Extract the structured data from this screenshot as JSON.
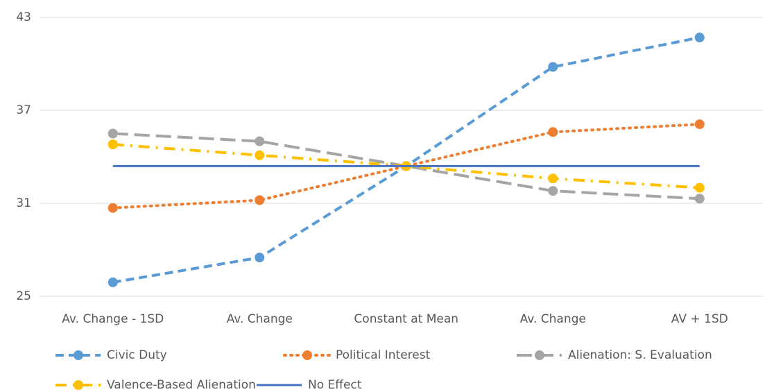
{
  "chart_data": {
    "type": "line",
    "categories": [
      "Av. Change - 1SD",
      "Av. Change",
      "Constant at Mean",
      "Av. Change",
      "AV + 1SD"
    ],
    "series": [
      {
        "name": "Civic Duty",
        "color": "#5b9bd5",
        "dash": "12,7",
        "marker": true,
        "values": [
          25.9,
          27.5,
          33.4,
          39.8,
          41.7
        ]
      },
      {
        "name": "Political Interest",
        "color": "#ed7d31",
        "dash": "2,7",
        "marker": true,
        "values": [
          30.7,
          31.2,
          33.4,
          35.6,
          36.1
        ]
      },
      {
        "name": "Alienation: S. Evaluation",
        "color": "#a5a5a5",
        "dash": "22,9",
        "marker": true,
        "values": [
          35.5,
          35.0,
          33.4,
          31.8,
          31.3
        ]
      },
      {
        "name": "Valence-Based Alienation",
        "color": "#ffc000",
        "dash": "16,9,3,9",
        "marker": true,
        "values": [
          34.8,
          34.1,
          33.4,
          32.6,
          32.0
        ]
      },
      {
        "name": "No Effect",
        "color": "#4472c4",
        "dash": "none",
        "marker": false,
        "values": [
          33.4,
          33.4,
          33.4,
          33.4,
          33.4
        ]
      }
    ],
    "ylim": [
      25,
      43
    ],
    "yticks": [
      25,
      31,
      37,
      43
    ],
    "grid": true,
    "legend": "bottom"
  }
}
